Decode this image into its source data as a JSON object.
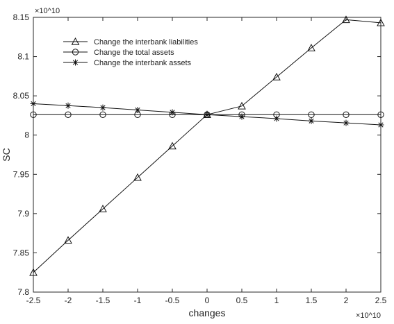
{
  "chart_data": {
    "type": "line",
    "title": "",
    "xlabel": "changes",
    "ylabel": "SC",
    "x_multiplier_label": "×10^10",
    "y_multiplier_label": "×10^10",
    "x_ticks": [
      "-2.5",
      "-2",
      "-1.5",
      "-1",
      "-0.5",
      "0",
      "0.5",
      "1",
      "1.5",
      "2",
      "2.5"
    ],
    "y_ticks": [
      "7.8",
      "7.85",
      "7.9",
      "7.95",
      "8",
      "8.05",
      "8.1",
      "8.15"
    ],
    "x": [
      -2.5,
      -2,
      -1.5,
      -1,
      -0.5,
      0,
      0.5,
      1,
      1.5,
      2,
      2.5
    ],
    "xlim": [
      -2.5,
      2.5
    ],
    "ylim": [
      7.8,
      8.15
    ],
    "grid": false,
    "legend_position": "top-left",
    "series": [
      {
        "name": "Change the interbank liabilities",
        "marker": "triangle",
        "values": [
          7.825,
          7.866,
          7.906,
          7.946,
          7.986,
          8.026,
          8.037,
          8.074,
          8.111,
          8.147,
          8.143
        ]
      },
      {
        "name": "Change the total assets",
        "marker": "circle",
        "values": [
          8.026,
          8.026,
          8.026,
          8.026,
          8.026,
          8.026,
          8.026,
          8.026,
          8.026,
          8.026,
          8.026
        ]
      },
      {
        "name": "Change the interbank assets",
        "marker": "asterisk",
        "values": [
          8.04,
          8.0375,
          8.035,
          8.032,
          8.029,
          8.026,
          8.0235,
          8.021,
          8.018,
          8.0155,
          8.013
        ]
      }
    ]
  }
}
